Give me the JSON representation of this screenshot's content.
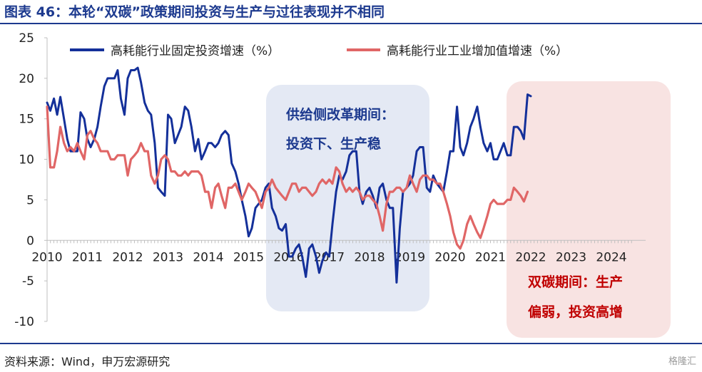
{
  "header": {
    "title": "图表 46：本轮“双碳”政策期间投资与生产与过往表现并不相同"
  },
  "footer": {
    "source": "资料来源：Wind，申万宏源研究",
    "watermark": "格隆汇"
  },
  "chart_data": {
    "type": "line",
    "xlim": [
      2010,
      2024.6
    ],
    "ylim": [
      -10,
      25
    ],
    "ticks_x": [
      2010,
      2011,
      2012,
      2013,
      2014,
      2015,
      2016,
      2017,
      2018,
      2019,
      2020,
      2021,
      2022,
      2023,
      2024
    ],
    "ticks_y": [
      25,
      20,
      15,
      10,
      5,
      0,
      -5,
      -10
    ],
    "colors": {
      "series1": "#14309a",
      "series2": "#e06666",
      "box1_fill": "#e4e9f4",
      "box2_fill": "#f8e3e2",
      "box1_text": "#1d3a8f",
      "box2_text": "#c00000"
    },
    "series": [
      {
        "name": "高耗能行业固定投资增速（%）",
        "points": [
          [
            2010.0,
            17.0
          ],
          [
            2010.08,
            16.0
          ],
          [
            2010.17,
            17.5
          ],
          [
            2010.25,
            15.5
          ],
          [
            2010.33,
            17.7
          ],
          [
            2010.42,
            15.0
          ],
          [
            2010.5,
            12.5
          ],
          [
            2010.58,
            11.0
          ],
          [
            2010.67,
            11.0
          ],
          [
            2010.75,
            11.0
          ],
          [
            2010.83,
            15.8
          ],
          [
            2010.92,
            15.0
          ],
          [
            2011.0,
            12.5
          ],
          [
            2011.08,
            11.5
          ],
          [
            2011.17,
            12.5
          ],
          [
            2011.25,
            14.0
          ],
          [
            2011.33,
            16.5
          ],
          [
            2011.42,
            19.0
          ],
          [
            2011.5,
            20.0
          ],
          [
            2011.58,
            20.0
          ],
          [
            2011.67,
            20.0
          ],
          [
            2011.75,
            21.0
          ],
          [
            2011.83,
            17.5
          ],
          [
            2011.92,
            15.5
          ],
          [
            2012.0,
            20.0
          ],
          [
            2012.08,
            21.0
          ],
          [
            2012.17,
            21.0
          ],
          [
            2012.25,
            21.3
          ],
          [
            2012.33,
            19.5
          ],
          [
            2012.42,
            17.0
          ],
          [
            2012.5,
            16.0
          ],
          [
            2012.58,
            15.5
          ],
          [
            2012.67,
            12.0
          ],
          [
            2012.75,
            6.5
          ],
          [
            2012.83,
            6.0
          ],
          [
            2012.92,
            5.5
          ],
          [
            2013.0,
            15.5
          ],
          [
            2013.08,
            15.0
          ],
          [
            2013.17,
            12.0
          ],
          [
            2013.25,
            13.0
          ],
          [
            2013.33,
            14.0
          ],
          [
            2013.42,
            16.5
          ],
          [
            2013.5,
            16.0
          ],
          [
            2013.58,
            14.0
          ],
          [
            2013.67,
            11.0
          ],
          [
            2013.75,
            12.5
          ],
          [
            2013.83,
            10.0
          ],
          [
            2013.92,
            11.0
          ],
          [
            2014.0,
            12.0
          ],
          [
            2014.08,
            12.0
          ],
          [
            2014.17,
            11.5
          ],
          [
            2014.25,
            12.0
          ],
          [
            2014.33,
            13.0
          ],
          [
            2014.42,
            13.5
          ],
          [
            2014.5,
            13.0
          ],
          [
            2014.58,
            9.5
          ],
          [
            2014.67,
            8.5
          ],
          [
            2014.75,
            7.0
          ],
          [
            2014.83,
            5.0
          ],
          [
            2014.92,
            3.0
          ],
          [
            2015.0,
            0.5
          ],
          [
            2015.08,
            1.5
          ],
          [
            2015.17,
            4.0
          ],
          [
            2015.25,
            4.5
          ],
          [
            2015.33,
            5.0
          ],
          [
            2015.42,
            6.5
          ],
          [
            2015.5,
            7.0
          ],
          [
            2015.58,
            4.0
          ],
          [
            2015.67,
            3.0
          ],
          [
            2015.75,
            1.5
          ],
          [
            2015.83,
            1.2
          ],
          [
            2015.92,
            2.0
          ],
          [
            2016.0,
            -2.0
          ],
          [
            2016.08,
            -2.0
          ],
          [
            2016.17,
            -1.0
          ],
          [
            2016.25,
            -0.5
          ],
          [
            2016.33,
            -2.0
          ],
          [
            2016.42,
            -4.5
          ],
          [
            2016.5,
            -1.0
          ],
          [
            2016.58,
            -0.5
          ],
          [
            2016.67,
            -2.0
          ],
          [
            2016.75,
            -4.0
          ],
          [
            2016.83,
            -2.5
          ],
          [
            2016.92,
            -1.5
          ],
          [
            2017.0,
            -2.0
          ],
          [
            2017.08,
            2.0
          ],
          [
            2017.17,
            6.0
          ],
          [
            2017.25,
            8.0
          ],
          [
            2017.33,
            7.5
          ],
          [
            2017.42,
            8.5
          ],
          [
            2017.5,
            10.5
          ],
          [
            2017.58,
            11.0
          ],
          [
            2017.67,
            11.0
          ],
          [
            2017.75,
            6.0
          ],
          [
            2017.83,
            4.5
          ],
          [
            2017.92,
            6.0
          ],
          [
            2018.0,
            6.5
          ],
          [
            2018.08,
            5.5
          ],
          [
            2018.17,
            4.0
          ],
          [
            2018.25,
            6.5
          ],
          [
            2018.33,
            7.0
          ],
          [
            2018.42,
            5.0
          ],
          [
            2018.5,
            4.0
          ],
          [
            2018.58,
            4.0
          ],
          [
            2018.67,
            -5.2
          ],
          [
            2018.75,
            1.5
          ],
          [
            2018.83,
            6.0
          ],
          [
            2018.92,
            6.5
          ],
          [
            2019.0,
            7.0
          ],
          [
            2019.08,
            8.0
          ],
          [
            2019.17,
            11.0
          ],
          [
            2019.25,
            11.5
          ],
          [
            2019.33,
            11.5
          ],
          [
            2019.42,
            6.5
          ],
          [
            2019.5,
            6.0
          ],
          [
            2019.58,
            8.0
          ],
          [
            2019.67,
            7.0
          ],
          [
            2019.75,
            6.5
          ],
          [
            2019.83,
            6.0
          ],
          [
            2019.92,
            8.5
          ],
          [
            2020.0,
            11.0
          ],
          [
            2020.08,
            11.0
          ],
          [
            2020.17,
            16.5
          ],
          [
            2020.25,
            11.5
          ],
          [
            2020.33,
            10.5
          ],
          [
            2020.42,
            12.0
          ],
          [
            2020.5,
            14.0
          ],
          [
            2020.58,
            15.0
          ],
          [
            2020.67,
            16.5
          ],
          [
            2020.75,
            14.0
          ],
          [
            2020.83,
            12.0
          ],
          [
            2020.92,
            11.0
          ],
          [
            2021.0,
            12.0
          ],
          [
            2021.08,
            10.0
          ],
          [
            2021.17,
            10.0
          ],
          [
            2021.25,
            11.0
          ],
          [
            2021.33,
            12.0
          ],
          [
            2021.42,
            10.5
          ],
          [
            2021.5,
            10.5
          ],
          [
            2021.58,
            14.0
          ],
          [
            2021.67,
            14.0
          ],
          [
            2021.75,
            13.5
          ],
          [
            2021.83,
            12.5
          ],
          [
            2021.92,
            18.0
          ],
          [
            2022.0,
            17.8
          ]
        ]
      },
      {
        "name": "高耗能行业工业增加值增速（%）",
        "points": [
          [
            2010.0,
            16.5
          ],
          [
            2010.08,
            9.0
          ],
          [
            2010.17,
            9.0
          ],
          [
            2010.25,
            11.0
          ],
          [
            2010.33,
            14.0
          ],
          [
            2010.42,
            12.0
          ],
          [
            2010.5,
            11.0
          ],
          [
            2010.58,
            11.5
          ],
          [
            2010.67,
            11.0
          ],
          [
            2010.75,
            12.0
          ],
          [
            2010.83,
            11.0
          ],
          [
            2010.92,
            10.0
          ],
          [
            2011.0,
            13.0
          ],
          [
            2011.08,
            13.5
          ],
          [
            2011.17,
            12.5
          ],
          [
            2011.25,
            12.0
          ],
          [
            2011.33,
            11.0
          ],
          [
            2011.42,
            11.0
          ],
          [
            2011.5,
            11.0
          ],
          [
            2011.58,
            10.0
          ],
          [
            2011.67,
            10.0
          ],
          [
            2011.75,
            10.5
          ],
          [
            2011.83,
            10.5
          ],
          [
            2011.92,
            10.5
          ],
          [
            2012.0,
            8.0
          ],
          [
            2012.08,
            10.0
          ],
          [
            2012.17,
            10.5
          ],
          [
            2012.25,
            11.0
          ],
          [
            2012.33,
            12.0
          ],
          [
            2012.42,
            11.0
          ],
          [
            2012.5,
            11.0
          ],
          [
            2012.58,
            8.0
          ],
          [
            2012.67,
            7.0
          ],
          [
            2012.75,
            8.0
          ],
          [
            2012.83,
            10.0
          ],
          [
            2012.92,
            10.5
          ],
          [
            2013.0,
            10.0
          ],
          [
            2013.08,
            8.5
          ],
          [
            2013.17,
            8.5
          ],
          [
            2013.25,
            8.0
          ],
          [
            2013.33,
            8.0
          ],
          [
            2013.42,
            8.5
          ],
          [
            2013.5,
            8.0
          ],
          [
            2013.58,
            8.5
          ],
          [
            2013.67,
            8.5
          ],
          [
            2013.75,
            8.5
          ],
          [
            2013.83,
            8.0
          ],
          [
            2013.92,
            6.0
          ],
          [
            2014.0,
            6.0
          ],
          [
            2014.08,
            4.0
          ],
          [
            2014.17,
            6.5
          ],
          [
            2014.25,
            7.0
          ],
          [
            2014.33,
            5.5
          ],
          [
            2014.42,
            4.0
          ],
          [
            2014.5,
            6.5
          ],
          [
            2014.58,
            6.5
          ],
          [
            2014.67,
            7.0
          ],
          [
            2014.75,
            6.0
          ],
          [
            2014.83,
            5.0
          ],
          [
            2014.92,
            6.0
          ],
          [
            2015.0,
            7.0
          ],
          [
            2015.08,
            6.5
          ],
          [
            2015.17,
            6.0
          ],
          [
            2015.25,
            5.0
          ],
          [
            2015.33,
            4.0
          ],
          [
            2015.42,
            6.0
          ],
          [
            2015.5,
            6.5
          ],
          [
            2015.58,
            7.5
          ],
          [
            2015.67,
            6.5
          ],
          [
            2015.75,
            6.0
          ],
          [
            2015.83,
            5.5
          ],
          [
            2015.92,
            5.0
          ],
          [
            2016.0,
            6.0
          ],
          [
            2016.08,
            7.0
          ],
          [
            2016.17,
            7.0
          ],
          [
            2016.25,
            6.0
          ],
          [
            2016.33,
            6.5
          ],
          [
            2016.42,
            6.5
          ],
          [
            2016.5,
            6.0
          ],
          [
            2016.58,
            5.5
          ],
          [
            2016.67,
            6.0
          ],
          [
            2016.75,
            7.0
          ],
          [
            2016.83,
            7.5
          ],
          [
            2016.92,
            7.0
          ],
          [
            2017.0,
            7.5
          ],
          [
            2017.08,
            7.0
          ],
          [
            2017.17,
            9.0
          ],
          [
            2017.25,
            8.5
          ],
          [
            2017.33,
            7.0
          ],
          [
            2017.42,
            6.0
          ],
          [
            2017.5,
            6.5
          ],
          [
            2017.58,
            6.0
          ],
          [
            2017.67,
            6.5
          ],
          [
            2017.75,
            6.0
          ],
          [
            2017.83,
            5.0
          ],
          [
            2017.92,
            5.5
          ],
          [
            2018.0,
            5.5
          ],
          [
            2018.08,
            5.0
          ],
          [
            2018.17,
            4.5
          ],
          [
            2018.25,
            3.0
          ],
          [
            2018.33,
            1.2
          ],
          [
            2018.42,
            4.5
          ],
          [
            2018.5,
            6.0
          ],
          [
            2018.58,
            6.0
          ],
          [
            2018.67,
            6.5
          ],
          [
            2018.75,
            6.5
          ],
          [
            2018.83,
            6.0
          ],
          [
            2018.92,
            6.5
          ],
          [
            2019.0,
            8.0
          ],
          [
            2019.08,
            7.0
          ],
          [
            2019.17,
            6.0
          ],
          [
            2019.25,
            7.5
          ],
          [
            2019.33,
            8.0
          ],
          [
            2019.42,
            8.0
          ],
          [
            2019.5,
            7.5
          ],
          [
            2019.58,
            7.5
          ],
          [
            2019.67,
            7.0
          ],
          [
            2019.75,
            7.0
          ],
          [
            2019.83,
            6.0
          ],
          [
            2019.92,
            4.5
          ],
          [
            2020.0,
            3.0
          ],
          [
            2020.08,
            1.0
          ],
          [
            2020.17,
            -0.5
          ],
          [
            2020.25,
            -1.0
          ],
          [
            2020.33,
            0.0
          ],
          [
            2020.42,
            2.0
          ],
          [
            2020.5,
            3.0
          ],
          [
            2020.58,
            2.0
          ],
          [
            2020.67,
            1.0
          ],
          [
            2020.75,
            0.3
          ],
          [
            2020.83,
            1.5
          ],
          [
            2020.92,
            3.0
          ],
          [
            2021.0,
            4.5
          ],
          [
            2021.08,
            5.0
          ],
          [
            2021.17,
            4.5
          ],
          [
            2021.25,
            4.5
          ],
          [
            2021.33,
            4.5
          ],
          [
            2021.42,
            5.0
          ],
          [
            2021.5,
            5.0
          ],
          [
            2021.58,
            6.5
          ],
          [
            2021.67,
            6.0
          ],
          [
            2021.75,
            5.5
          ],
          [
            2021.83,
            4.8
          ],
          [
            2021.92,
            6.0
          ]
        ]
      }
    ],
    "annotations": [
      {
        "id": "box1",
        "lines": [
          "供给侧改革期间：",
          "投资下、生产稳"
        ]
      },
      {
        "id": "box2",
        "lines": [
          "双碳期间：生产",
          "偏弱，投资高增"
        ]
      }
    ]
  }
}
